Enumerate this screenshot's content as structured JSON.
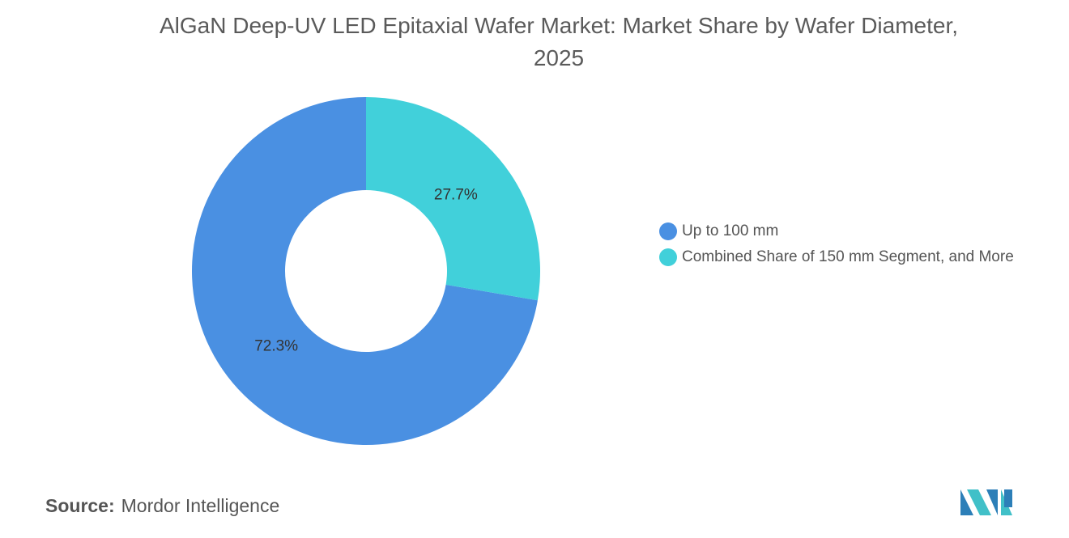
{
  "chart_data": {
    "type": "pie",
    "donut": true,
    "title": "AlGaN Deep-UV LED Epitaxial Wafer Market: Market Share by Wafer Diameter, 2025",
    "categories": [
      "Up to 100 mm",
      "Combined Share of 150 mm Segment, and More"
    ],
    "values": [
      72.3,
      27.7
    ],
    "value_labels": [
      "72.3%",
      "27.7%"
    ],
    "colors": [
      "#4a90e2",
      "#41d0da"
    ],
    "source_label": "Source:",
    "source": "Mordor Intelligence"
  }
}
